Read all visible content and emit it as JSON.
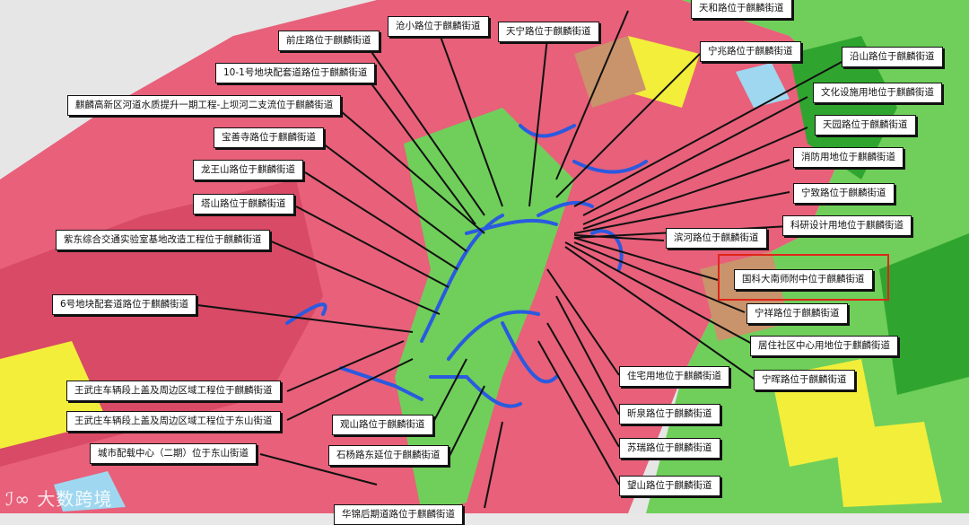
{
  "map": {
    "colors": {
      "residential": "#e8607a",
      "green": "#6fcf5a",
      "dark_green": "#2fa52f",
      "yellow": "#f2ee3a",
      "brown": "#c9936b",
      "water": "#9fd7f0",
      "road": "#2a5ae0",
      "highlight": "#e0251b"
    },
    "labels": [
      "天和路位于麒麟街道",
      "沧小路位于麒麟街道",
      "天宁路位于麒麟街道",
      "前庄路位于麒麟街道",
      "宁兆路位于麒麟街道",
      "沿山路位于麒麟街道",
      "10-1号地块配套道路位于麒麟街道",
      "文化设施用地位于麒麟街道",
      "麒麟高新区河道水质提升一期工程-上坝河二支流位于麒麟街道",
      "天园路位于麒麟街道",
      "宝善寺路位于麒麟街道",
      "消防用地位于麒麟街道",
      "龙王山路位于麒麟街道",
      "宁致路位于麒麟街道",
      "塔山路位于麒麟街道",
      "科研设计用地位于麒麟街道",
      "紫东综合交通实验室基地改造工程位于麒麟街道",
      "滨河路位于麒麟街道",
      "国科大南师附中位于麒麟街道",
      "6号地块配套道路位于麒麟街道",
      "宁祥路位于麒麟街道",
      "居住社区中心用地位于麒麟街道",
      "住宅用地位于麒麟街道",
      "宁晖路位于麒麟街道",
      "王武庄车辆段上盖及周边区域工程位于麒麟街道",
      "昕泉路位于麒麟街道",
      "王武庄车辆段上盖及周边区域工程位于东山街道",
      "观山路位于麒麟街道",
      "苏瑞路位于麒麟街道",
      "城市配载中心（二期）位于东山街道",
      "石杨路东延位于麒麟街道",
      "望山路位于麒麟街道",
      "华锦后期道路位于麒麟街道"
    ],
    "highlighted_label": "国科大南师附中位于麒麟街道",
    "watermark": "大数跨境"
  }
}
